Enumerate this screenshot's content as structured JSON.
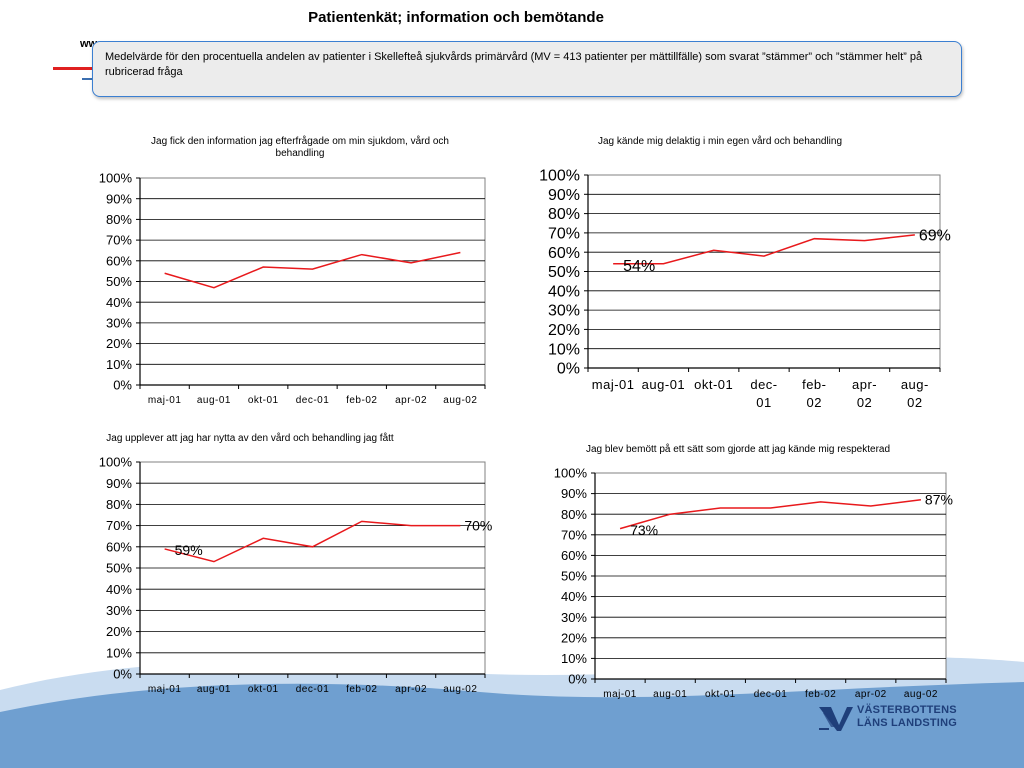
{
  "slide": {
    "title": "Patientenkät; information och bemötande",
    "url_fragment": "ww",
    "note": "Medelvärde för den procentuella andelen av patienter i Skellefteå sjukvårds primärvård (MV =  413 patienter per mättillfälle) som svarat ”stämmer” och ”stämmer helt” på rubricerad fråga",
    "logo_line1": "VÄSTERBOTTENS",
    "logo_line2": "LÄNS LANDSTING"
  },
  "colors": {
    "series": "#e8191c",
    "box_border": "#3b7fd1",
    "box_fill": "#ececec",
    "wave": "#6f9fd0",
    "logo": "#1f3f7a"
  },
  "chart_data": [
    {
      "type": "line",
      "title": "Jag fick den information jag efterfrågade om min sjukdom, vård och behandling",
      "categories": [
        "maj-01",
        "aug-01",
        "okt-01",
        "dec-01",
        "feb-02",
        "apr-02",
        "aug-02"
      ],
      "values": [
        54,
        47,
        57,
        56,
        63,
        59,
        64
      ],
      "y_ticks": [
        "0%",
        "10%",
        "20%",
        "30%",
        "40%",
        "50%",
        "60%",
        "70%",
        "80%",
        "90%",
        "100%"
      ],
      "ylim": [
        0,
        100
      ],
      "grid": true,
      "data_labels": [
        null,
        null,
        null,
        null,
        null,
        null,
        null
      ]
    },
    {
      "type": "line",
      "title": "Jag kände mig delaktig i min egen vård och behandling",
      "categories": [
        "maj-01",
        "aug-01",
        "okt-01",
        "dec-01",
        "feb-02",
        "apr-02",
        "aug-02"
      ],
      "values": [
        54,
        54,
        61,
        58,
        67,
        66,
        69
      ],
      "y_ticks": [
        "0%",
        "10%",
        "20%",
        "30%",
        "40%",
        "50%",
        "60%",
        "70%",
        "80%",
        "90%",
        "100%"
      ],
      "ylim": [
        0,
        100
      ],
      "grid": true,
      "data_labels": [
        "54%",
        null,
        null,
        null,
        null,
        null,
        "69%"
      ]
    },
    {
      "type": "line",
      "title": "Jag upplever att jag har nytta av den vård och behandling jag fått",
      "categories": [
        "maj-01",
        "aug-01",
        "okt-01",
        "dec-01",
        "feb-02",
        "apr-02",
        "aug-02"
      ],
      "values": [
        59,
        53,
        64,
        60,
        72,
        70,
        70
      ],
      "y_ticks": [
        "0%",
        "10%",
        "20%",
        "30%",
        "40%",
        "50%",
        "60%",
        "70%",
        "80%",
        "90%",
        "100%"
      ],
      "ylim": [
        0,
        100
      ],
      "grid": true,
      "data_labels": [
        "59%",
        null,
        null,
        null,
        null,
        null,
        "70%"
      ]
    },
    {
      "type": "line",
      "title": "Jag blev bemött på ett sätt som gjorde att jag kände mig respekterad",
      "categories": [
        "maj-01",
        "aug-01",
        "okt-01",
        "dec-01",
        "feb-02",
        "apr-02",
        "aug-02"
      ],
      "values": [
        73,
        80,
        83,
        83,
        86,
        84,
        87
      ],
      "y_ticks": [
        "0%",
        "10%",
        "20%",
        "30%",
        "40%",
        "50%",
        "60%",
        "70%",
        "80%",
        "90%",
        "100%"
      ],
      "ylim": [
        0,
        100
      ],
      "grid": true,
      "data_labels": [
        "73%",
        null,
        null,
        null,
        null,
        null,
        "87%"
      ]
    }
  ]
}
